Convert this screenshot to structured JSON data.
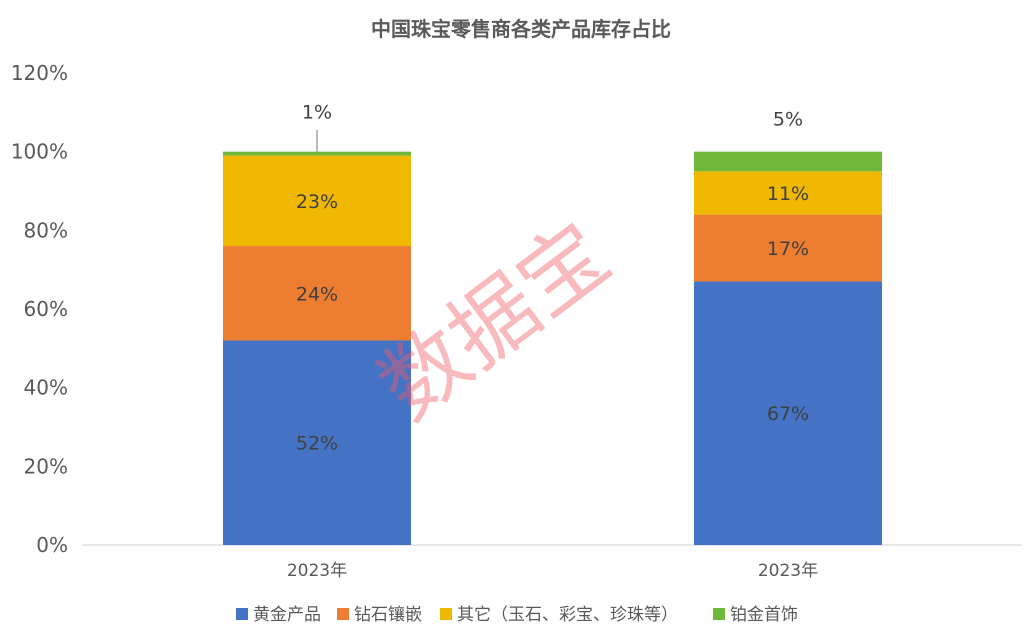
{
  "chart_data": {
    "type": "bar",
    "stacked": true,
    "title": "中国珠宝零售商各类产品库存占比",
    "categories": [
      "2023年",
      "2023年"
    ],
    "series": [
      {
        "name": "黄金产品",
        "color": "#4472C4",
        "values": [
          52,
          67
        ],
        "labels": [
          "52%",
          "67%"
        ],
        "label_color": "#404040"
      },
      {
        "name": "钻石镶嵌",
        "color": "#ED7D31",
        "values": [
          24,
          17
        ],
        "labels": [
          "24%",
          "17%"
        ],
        "label_color": "#404040"
      },
      {
        "name": "其它（玉石、彩宝、珍珠等）",
        "color": "#F0B800",
        "values": [
          23,
          11
        ],
        "labels": [
          "23%",
          "11%"
        ],
        "label_color": "#404040"
      },
      {
        "name": "铂金首饰",
        "color": "#70B83C",
        "values": [
          1,
          5
        ],
        "labels": [
          "1%",
          "5%"
        ],
        "label_color": "#404040"
      }
    ],
    "ylim": [
      0,
      120
    ],
    "yticks": [
      "0%",
      "20%",
      "40%",
      "60%",
      "80%",
      "100%",
      "120%"
    ],
    "grid": false,
    "legend_position": "bottom",
    "watermark": "数据宝"
  }
}
